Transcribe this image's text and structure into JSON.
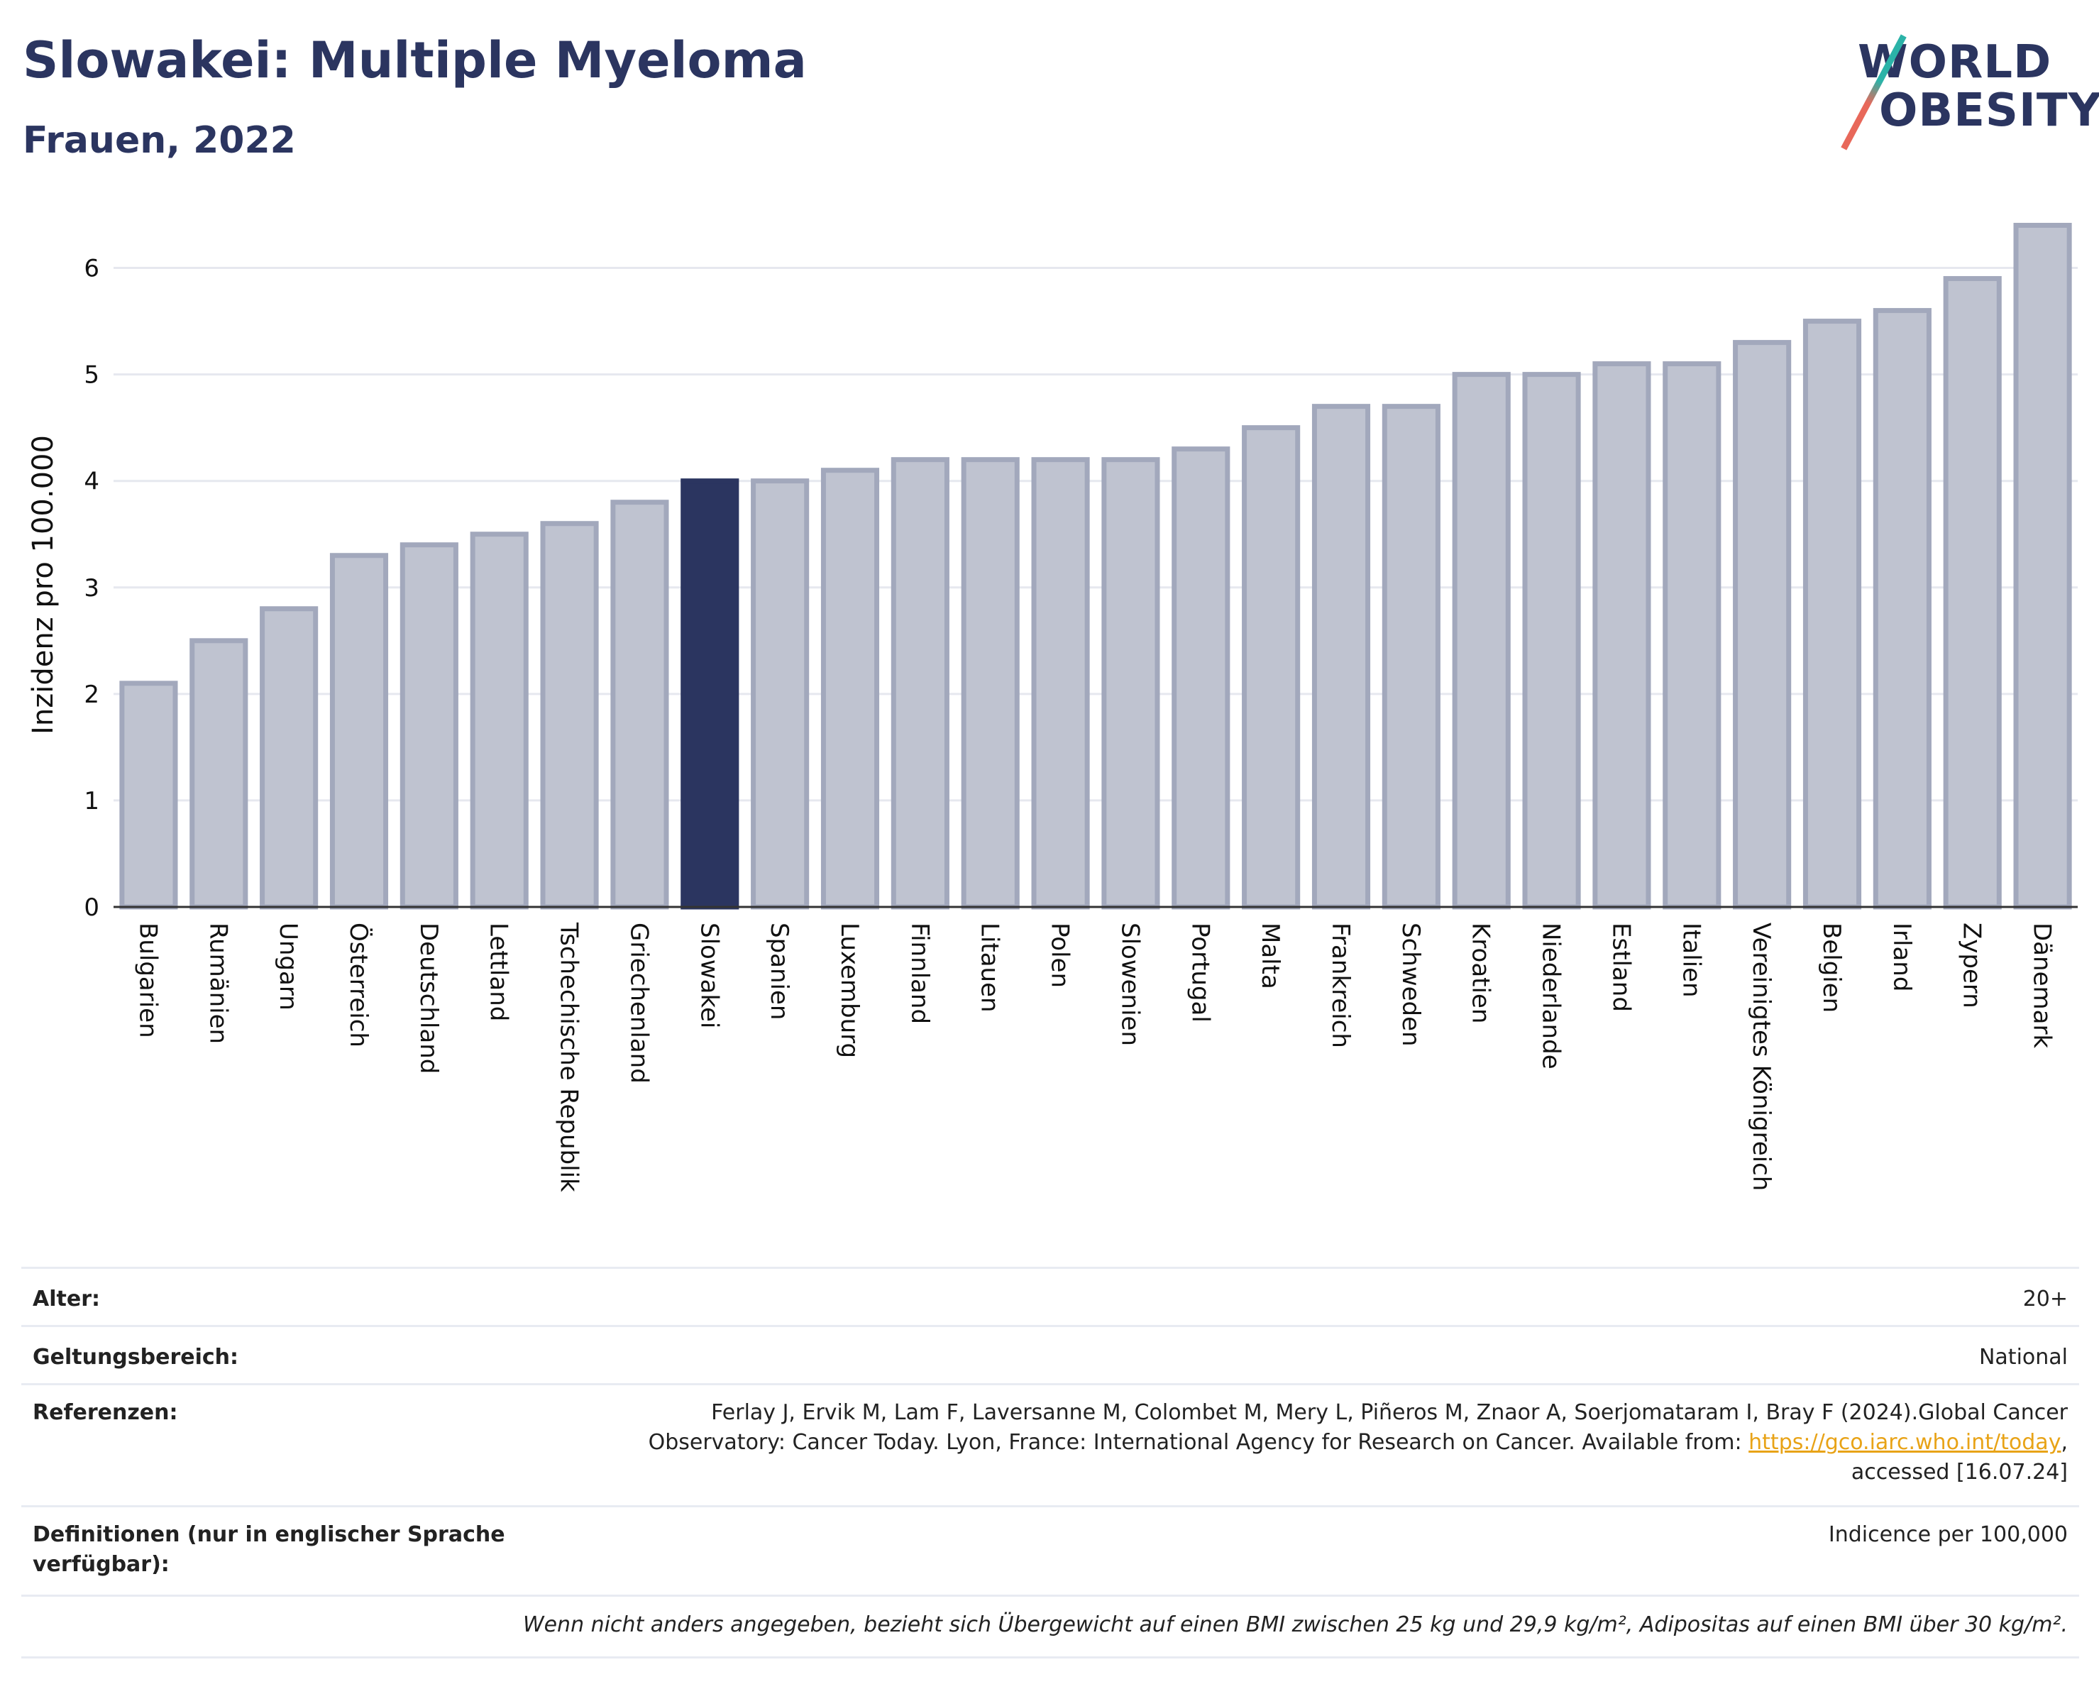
{
  "header": {
    "title": "Slowakei: Multiple Myeloma",
    "subtitle": "Frauen, 2022"
  },
  "logo": {
    "line1": "WORLD",
    "line2": "OBESITY"
  },
  "colors": {
    "highlight": "#2b3560",
    "bar_fill": "#bfc3d0",
    "bar_stroke": "#a2a8bc",
    "grid": "#e6e8ef",
    "logo_teal": "#2bb3a8",
    "logo_coral": "#e8685a",
    "link": "#e8a317"
  },
  "chart_data": {
    "type": "bar",
    "title": "Slowakei: Multiple Myeloma",
    "subtitle": "Frauen, 2022",
    "ylabel": "Inzidenz pro 100.000",
    "xlabel": "",
    "ylim": [
      0,
      6.45
    ],
    "yticks": [
      0,
      1,
      2,
      3,
      4,
      5,
      6
    ],
    "grid": true,
    "highlight": "Slowakei",
    "categories": [
      "Bulgarien",
      "Rumänien",
      "Ungarn",
      "Österreich",
      "Deutschland",
      "Lettland",
      "Tschechische Republik",
      "Griechenland",
      "Slowakei",
      "Spanien",
      "Luxemburg",
      "Finnland",
      "Litauen",
      "Polen",
      "Slowenien",
      "Portugal",
      "Malta",
      "Frankreich",
      "Schweden",
      "Kroatien",
      "Niederlande",
      "Estland",
      "Italien",
      "Vereinigtes Königreich",
      "Belgien",
      "Irland",
      "Zypern",
      "Dänemark"
    ],
    "values": [
      2.1,
      2.5,
      2.8,
      3.3,
      3.4,
      3.5,
      3.6,
      3.8,
      4.0,
      4.0,
      4.1,
      4.2,
      4.2,
      4.2,
      4.2,
      4.3,
      4.5,
      4.7,
      4.7,
      5.0,
      5.0,
      5.1,
      5.1,
      5.3,
      5.5,
      5.6,
      5.9,
      6.4
    ]
  },
  "meta": {
    "age_label": "Alter:",
    "age_value": "20+",
    "scope_label": "Geltungsbereich:",
    "scope_value": "National",
    "refs_label": "Referenzen:",
    "refs_line1": "Ferlay J, Ervik M, Lam F, Laversanne M, Colombet M, Mery L, Piñeros M, Znaor A, Soerjomataram I, Bray F (2024).Global Cancer",
    "refs_line2_prefix": "Observatory: Cancer Today. Lyon, France: International Agency for Research on Cancer. Available from: ",
    "refs_link": "https://gco.iarc.who.int/today",
    "refs_line2_suffix": ",",
    "refs_line3": "accessed [16.07.24]",
    "defs_label_line1": "Definitionen (nur in englischer Sprache",
    "defs_label_line2": "verfügbar):",
    "defs_value": "Indicence per 100,000",
    "footnote": "Wenn nicht anders angegeben, bezieht sich Übergewicht auf einen BMI zwischen 25 kg und 29,9 kg/m², Adipositas auf einen BMI über 30 kg/m²."
  }
}
